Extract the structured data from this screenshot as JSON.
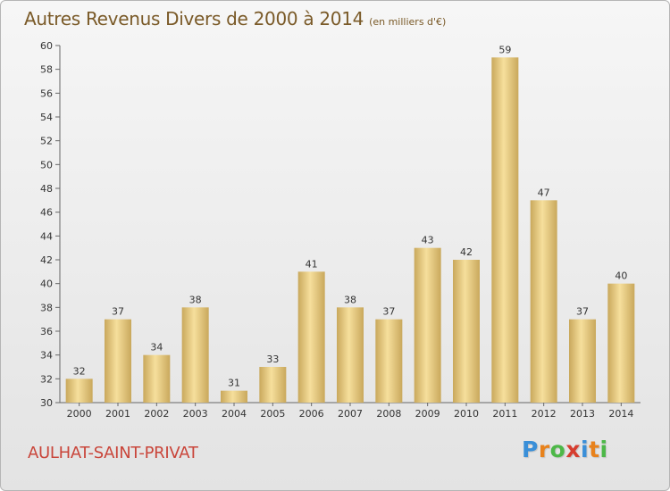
{
  "title": "Autres Revenus Divers de 2000 à 2014",
  "subtitle": "(en milliers d'€)",
  "commune": "AULHAT-SAINT-PRIVAT",
  "logo": {
    "letters": [
      "P",
      "r",
      "o",
      "x",
      "i",
      "t",
      "i"
    ],
    "colors": [
      "#3a8fd8",
      "#e8821c",
      "#4db848",
      "#d63d2f",
      "#3a8fd8",
      "#e8821c",
      "#4db848"
    ]
  },
  "colors": {
    "bar_light": "#f6df9c",
    "bar_dark": "#c9a85c",
    "title": "#7a5a28",
    "commune": "#c9453a"
  },
  "chart_data": {
    "type": "bar",
    "title": "Autres Revenus Divers de 2000 à 2014",
    "subtitle": "(en milliers d'€)",
    "categories": [
      "2000",
      "2001",
      "2002",
      "2003",
      "2004",
      "2005",
      "2006",
      "2007",
      "2008",
      "2009",
      "2010",
      "2011",
      "2012",
      "2013",
      "2014"
    ],
    "values": [
      32,
      37,
      34,
      38,
      31,
      33,
      41,
      38,
      37,
      43,
      42,
      59,
      47,
      37,
      40
    ],
    "ylim": [
      30,
      60
    ],
    "ytick_step": 2,
    "grid": false,
    "xlabel": "",
    "ylabel": ""
  }
}
